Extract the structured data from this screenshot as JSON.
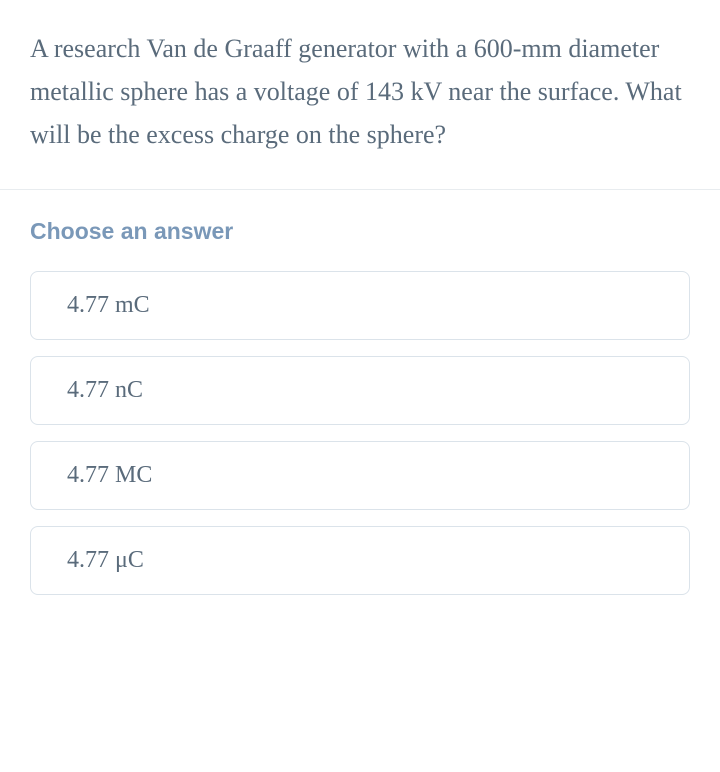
{
  "question": {
    "text": "A research Van de Graaff generator with a 600-mm diameter metallic sphere has a voltage of 143 kV near the surface. What will be the excess charge on the sphere?",
    "text_color": "#5a6b7b",
    "font_size": 26
  },
  "choose_label": {
    "text": "Choose an answer",
    "color": "#7a98b8",
    "font_size": 23
  },
  "options": [
    {
      "label": "4.77 mC"
    },
    {
      "label": "4.77 nC"
    },
    {
      "label": "4.77 MC"
    },
    {
      "label": "4.77 μC"
    }
  ],
  "styling": {
    "option_border_color": "#dbe3ea",
    "option_border_radius": 8,
    "option_text_color": "#5a6b7b",
    "option_font_size": 24,
    "divider_color": "#e8ecef",
    "background_color": "#ffffff"
  }
}
